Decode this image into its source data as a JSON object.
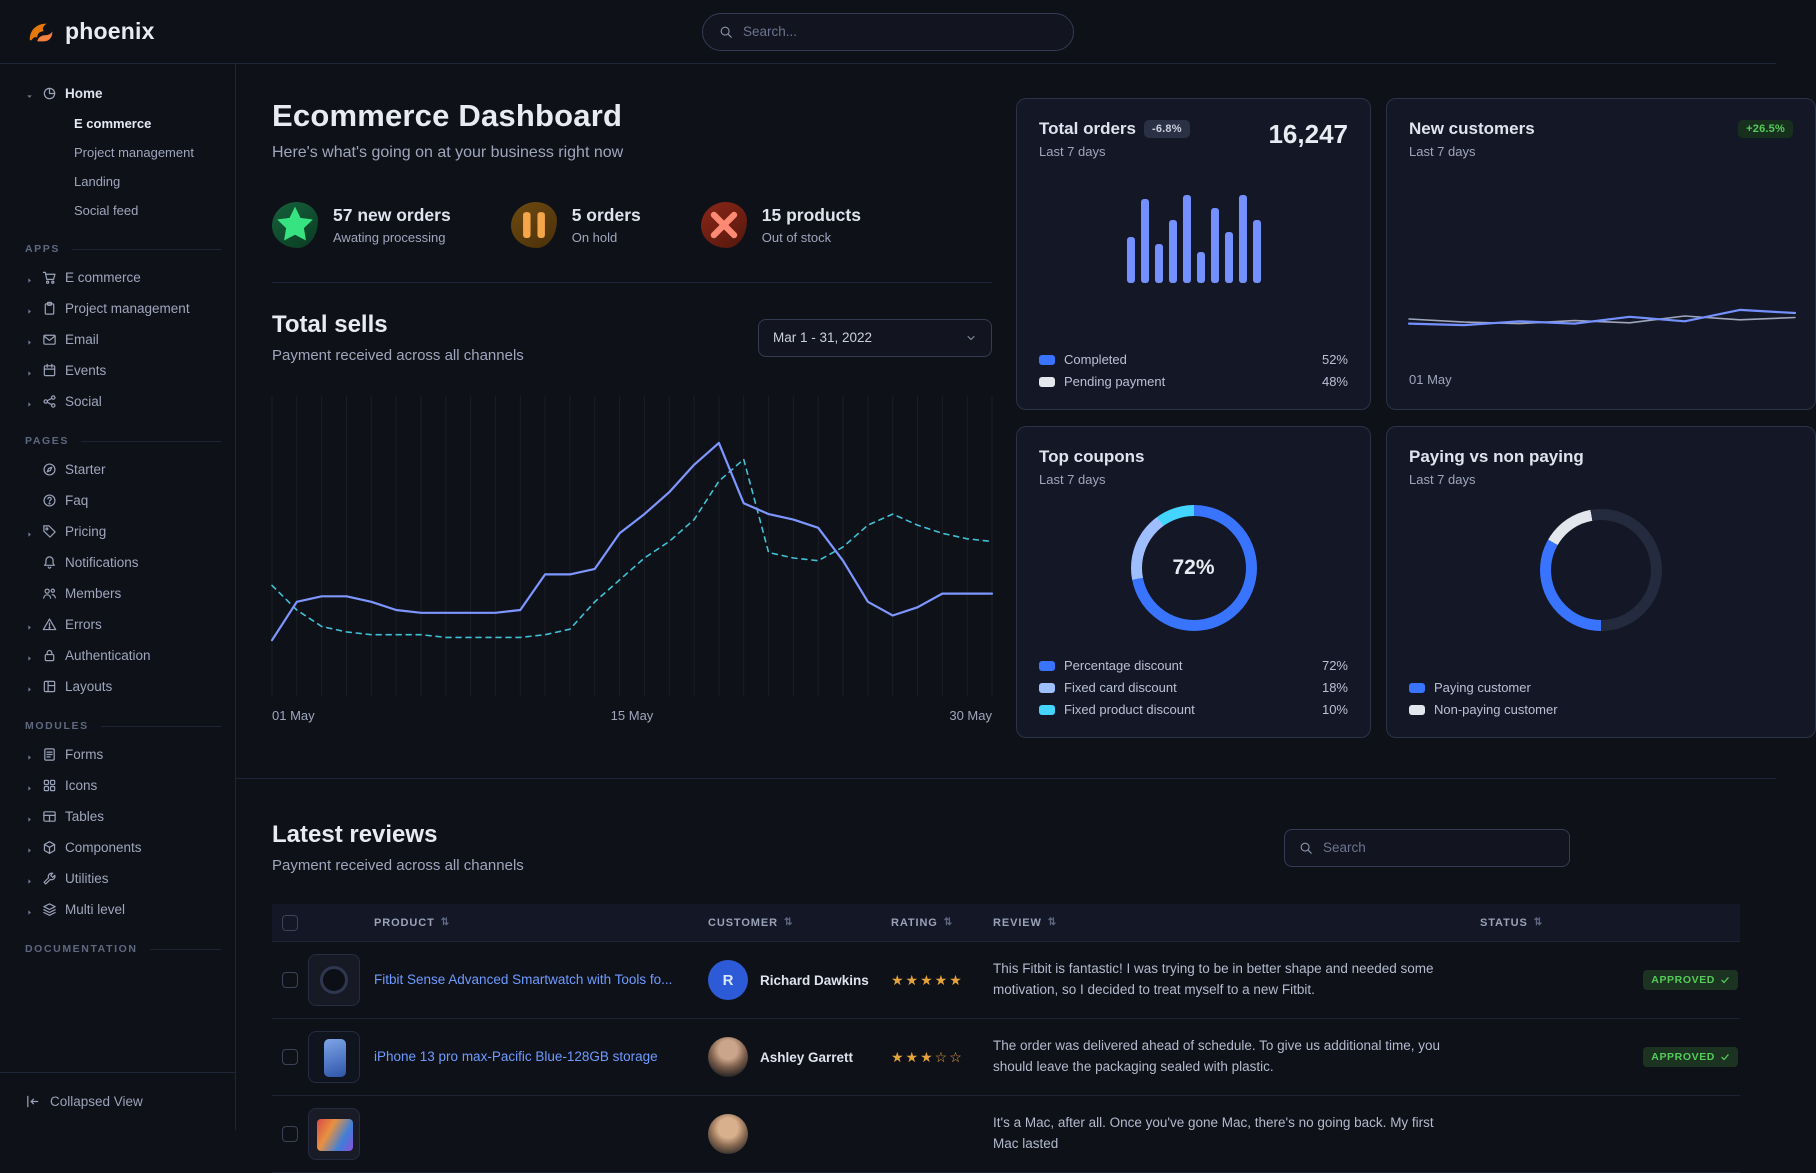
{
  "brand": {
    "name": "phoenix"
  },
  "navbar": {
    "search_placeholder": "Search..."
  },
  "sidebar": {
    "sections": [
      {
        "label": "",
        "items": [
          {
            "label": "Home",
            "icon": "chart-pie-icon",
            "caret": "down",
            "active": true,
            "children": [
              {
                "label": "E commerce",
                "active": true
              },
              {
                "label": "Project management",
                "active": false
              },
              {
                "label": "Landing",
                "active": false
              },
              {
                "label": "Social feed",
                "active": false
              }
            ]
          }
        ]
      },
      {
        "label": "APPS",
        "items": [
          {
            "label": "E commerce",
            "icon": "cart-icon",
            "caret": "right"
          },
          {
            "label": "Project management",
            "icon": "clipboard-icon",
            "caret": "right"
          },
          {
            "label": "Email",
            "icon": "envelope-icon",
            "caret": "right"
          },
          {
            "label": "Events",
            "icon": "calendar-icon",
            "caret": "right"
          },
          {
            "label": "Social",
            "icon": "share-icon",
            "caret": "right"
          }
        ]
      },
      {
        "label": "PAGES",
        "items": [
          {
            "label": "Starter",
            "icon": "compass-icon",
            "caret": "none"
          },
          {
            "label": "Faq",
            "icon": "question-circle-icon",
            "caret": "none"
          },
          {
            "label": "Pricing",
            "icon": "tag-icon",
            "caret": "right"
          },
          {
            "label": "Notifications",
            "icon": "bell-icon",
            "caret": "none"
          },
          {
            "label": "Members",
            "icon": "users-icon",
            "caret": "none"
          },
          {
            "label": "Errors",
            "icon": "warning-triangle-icon",
            "caret": "right"
          },
          {
            "label": "Authentication",
            "icon": "lock-icon",
            "caret": "right"
          },
          {
            "label": "Layouts",
            "icon": "layout-icon",
            "caret": "right"
          }
        ]
      },
      {
        "label": "MODULES",
        "items": [
          {
            "label": "Forms",
            "icon": "form-icon",
            "caret": "right"
          },
          {
            "label": "Icons",
            "icon": "grid-icon",
            "caret": "right"
          },
          {
            "label": "Tables",
            "icon": "table-icon",
            "caret": "right"
          },
          {
            "label": "Components",
            "icon": "components-icon",
            "caret": "right"
          },
          {
            "label": "Utilities",
            "icon": "wrench-icon",
            "caret": "right"
          },
          {
            "label": "Multi level",
            "icon": "layers-icon",
            "caret": "right"
          }
        ]
      },
      {
        "label": "DOCUMENTATION",
        "items": []
      }
    ],
    "footer": {
      "label": "Collapsed View",
      "icon": "collapse-left-icon"
    }
  },
  "page": {
    "title": "Ecommerce Dashboard",
    "subtitle": "Here's what's going on at your business right now"
  },
  "stats": [
    {
      "icon": "star-icon",
      "variant": "success",
      "title": "57 new orders",
      "subtitle": "Awating processing"
    },
    {
      "icon": "pause-icon",
      "variant": "warning",
      "title": "5 orders",
      "subtitle": "On hold"
    },
    {
      "icon": "x-icon",
      "variant": "danger",
      "title": "15 products",
      "subtitle": "Out of stock"
    }
  ],
  "total_sells": {
    "title": "Total sells",
    "subtitle": "Payment received across all channels",
    "date_range": "Mar 1 - 31, 2022"
  },
  "cards": {
    "total_orders": {
      "title": "Total orders",
      "badge": "-6.8%",
      "period": "Last 7 days",
      "value": "16,247"
    },
    "new_customers": {
      "title": "New customers",
      "badge": "+26.5%",
      "period": "Last 7 days"
    },
    "top_coupons": {
      "title": "Top coupons",
      "period": "Last 7 days"
    },
    "paying_vs_non_paying": {
      "title": "Paying vs non paying",
      "period": "Last 7 days"
    }
  },
  "reviews": {
    "title": "Latest reviews",
    "subtitle": "Payment received across all channels",
    "search_placeholder": "Search",
    "columns": [
      "PRODUCT",
      "CUSTOMER",
      "RATING",
      "REVIEW",
      "STATUS"
    ],
    "rows": [
      {
        "product_name": "Fitbit Sense Advanced Smartwatch with Tools fo...",
        "thumb": "smartwatch-thumb",
        "customer_name": "Richard Dawkins",
        "avatar_kind": "initial",
        "avatar_text": "R",
        "rating": 5,
        "review_text": "This Fitbit is fantastic! I was trying to be in better shape and needed some motivation, so I decided to treat myself to a new Fitbit.",
        "status": "APPROVED"
      },
      {
        "product_name": "iPhone 13 pro max-Pacific Blue-128GB storage",
        "thumb": "iphone-thumb",
        "customer_name": "Ashley Garrett",
        "avatar_kind": "photo-1",
        "avatar_text": "",
        "rating": 3,
        "review_text": "The order was delivered ahead of schedule. To give us additional time, you should leave the packaging sealed with plastic.",
        "status": "APPROVED"
      },
      {
        "product_name": "",
        "thumb": "macbook-thumb",
        "customer_name": "",
        "avatar_kind": "photo-2",
        "avatar_text": "",
        "rating": null,
        "review_text": "It's a Mac, after all. Once you've gone Mac, there's no going back. My first Mac lasted",
        "status": ""
      }
    ]
  },
  "chart_data": [
    {
      "name": "total_sells",
      "type": "line",
      "grid": "vertical",
      "ylim": [
        0,
        100
      ],
      "x_ticks": [
        "01 May",
        "15 May",
        "30 May"
      ],
      "series": [
        {
          "name": "dashed-line",
          "style": "dashed",
          "color": "#3fc1d4",
          "values": [
            36,
            27,
            21,
            19,
            18,
            18,
            18,
            17,
            17,
            17,
            17,
            18,
            20,
            30,
            38,
            46,
            52,
            60,
            74,
            82,
            48,
            46,
            45,
            50,
            58,
            62,
            58,
            55,
            53,
            52
          ]
        },
        {
          "name": "solid-line",
          "style": "solid",
          "color": "#7e96ff",
          "values": [
            16,
            30,
            32,
            32,
            30,
            27,
            26,
            26,
            26,
            26,
            27,
            40,
            40,
            42,
            55,
            62,
            70,
            80,
            88,
            66,
            62,
            60,
            57,
            45,
            30,
            25,
            28,
            33,
            33,
            33
          ]
        }
      ]
    },
    {
      "name": "total_orders",
      "type": "bar",
      "color": "#7490ff",
      "ylim": [
        0,
        100
      ],
      "values": [
        45,
        82,
        38,
        62,
        86,
        30,
        74,
        50,
        86,
        62
      ],
      "legend": [
        {
          "label": "Completed",
          "value_label": "52%",
          "color": "#3874ff"
        },
        {
          "label": "Pending payment",
          "value_label": "48%",
          "color": "#e3e6ed"
        }
      ]
    },
    {
      "name": "new_customers",
      "type": "line",
      "ylim": [
        0,
        100
      ],
      "x_ticks": [
        "01 May"
      ],
      "series": [
        {
          "name": "previous-line",
          "style": "solid",
          "color": "#9fa6bc",
          "width": 1.6,
          "values": [
            46,
            42,
            40,
            44,
            41,
            50,
            45,
            48
          ]
        },
        {
          "name": "current-line",
          "style": "solid",
          "color": "#7490ff",
          "values": [
            40,
            38,
            43,
            40,
            49,
            43,
            58,
            54
          ]
        }
      ]
    },
    {
      "name": "top_coupons",
      "type": "pie",
      "donut": true,
      "start_deg": 0,
      "center_label": "72%",
      "slices": [
        {
          "label": "Percentage discount",
          "value": 72,
          "value_label": "72%",
          "color": "#3874ff"
        },
        {
          "label": "Fixed card discount",
          "value": 18,
          "value_label": "18%",
          "color": "#9fbeff"
        },
        {
          "label": "Fixed product discount",
          "value": 10,
          "value_label": "10%",
          "color": "#43d4ff"
        }
      ]
    },
    {
      "name": "paying_vs_non_paying",
      "type": "pie",
      "donut": true,
      "start_deg": 180,
      "track_color": "#242b3e",
      "slices": [
        {
          "label": "Paying customer",
          "sweep_deg": 120,
          "color": "#3874ff"
        },
        {
          "label": "Non-paying customer",
          "sweep_deg": 50,
          "color": "#e3e6ed"
        }
      ]
    }
  ]
}
